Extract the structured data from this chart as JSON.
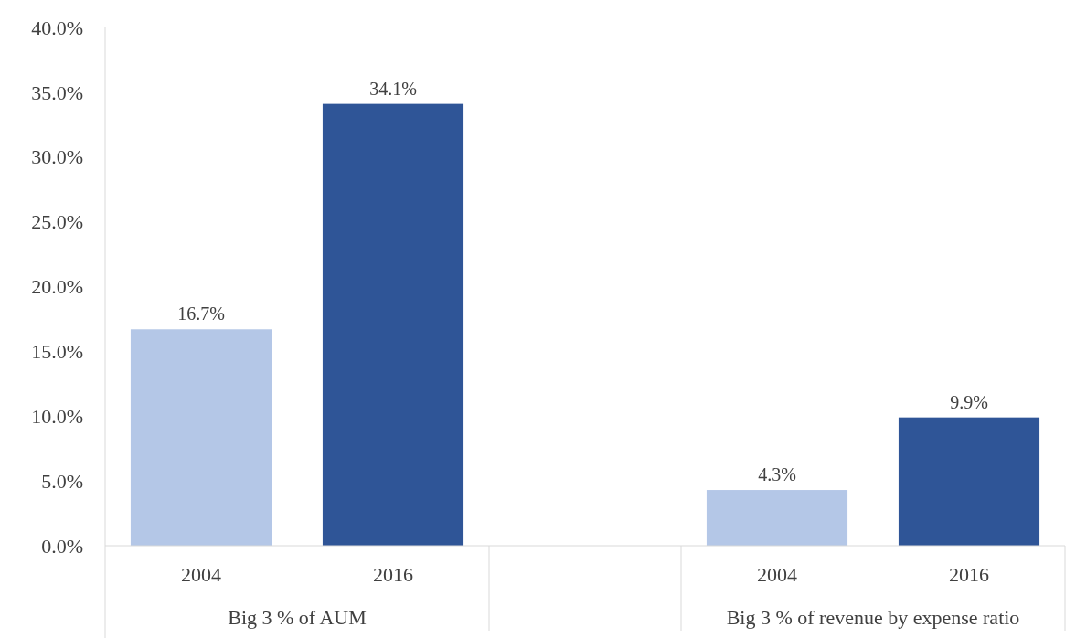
{
  "chart_data": {
    "type": "bar",
    "categories": [
      "2004",
      "2016",
      null,
      "2004",
      "2016"
    ],
    "values": [
      16.7,
      34.1,
      null,
      4.3,
      9.9
    ],
    "colors": [
      "#b4c7e7",
      "#2f5597",
      null,
      "#b4c7e7",
      "#2f5597"
    ],
    "ylim": [
      0,
      40
    ],
    "yticks": [
      {
        "value": 0,
        "label": "0.0%"
      },
      {
        "value": 5,
        "label": "5.0%"
      },
      {
        "value": 10,
        "label": "10.0%"
      },
      {
        "value": 15,
        "label": "15.0%"
      },
      {
        "value": 20,
        "label": "20.0%"
      },
      {
        "value": 25,
        "label": "25.0%"
      },
      {
        "value": 30,
        "label": "30.0%"
      },
      {
        "value": 35,
        "label": "35.0%"
      },
      {
        "value": 40,
        "label": "40.0%"
      }
    ],
    "value_labels": [
      "16.7%",
      "34.1%",
      null,
      "4.3%",
      "9.9%"
    ],
    "annotations": [
      "Big 3 % of AUM",
      "Big 3 % of revenue by expense ratio"
    ]
  }
}
